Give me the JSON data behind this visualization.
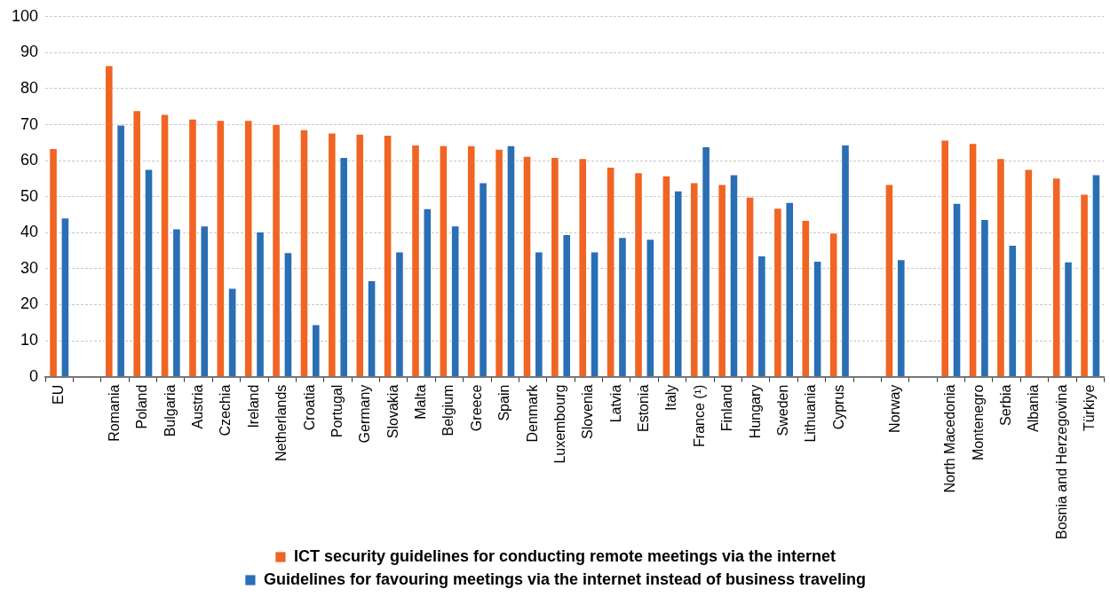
{
  "chart_data": {
    "type": "bar",
    "categories": [
      "EU",
      null,
      "Romania",
      "Poland",
      "Bulgaria",
      "Austria",
      "Czechia",
      "Ireland",
      "Netherlands",
      "Croatia",
      "Portugal",
      "Germany",
      "Slovakia",
      "Malta",
      "Belgium",
      "Greece",
      "Spain",
      "Denmark",
      "Luxembourg",
      "Slovenia",
      "Latvia",
      "Estonia",
      "Italy",
      "France (¹)",
      "Finland",
      "Hungary",
      "Sweden",
      "Lithuania",
      "Cyprus",
      null,
      "Norway",
      null,
      "North Macedonia",
      "Montenegro",
      "Serbia",
      "Albania",
      "Bosnia and Herzegovina",
      "Türkiye"
    ],
    "series": [
      {
        "name": "ICT security guidelines for conducting remote meetings via the internet",
        "color": "#f06424",
        "values": [
          63.5,
          null,
          86.5,
          74,
          73,
          71.7,
          71.3,
          71.3,
          70.2,
          68.7,
          67.8,
          67.5,
          67.2,
          64.5,
          64.3,
          64.3,
          63.3,
          61.3,
          61,
          60.7,
          58.3,
          56.8,
          55.9,
          54,
          53.5,
          50,
          46.9,
          43.5,
          40,
          null,
          53.5,
          null,
          65.8,
          64.9,
          60.7,
          57.7,
          55.3,
          50.8
        ]
      },
      {
        "name": "Guidelines for favouring meetings via the internet instead of business traveling",
        "color": "#2a6eb4",
        "values": [
          44.2,
          null,
          70,
          57.7,
          41.2,
          42,
          24.7,
          40.3,
          34.6,
          14.6,
          61,
          26.8,
          34.8,
          46.8,
          42,
          54,
          64.3,
          34.8,
          39.6,
          34.8,
          38.8,
          38.3,
          51.7,
          64,
          56.2,
          33.7,
          48.5,
          32.2,
          64.5,
          null,
          32.6,
          null,
          48.3,
          43.8,
          36.6,
          null,
          32,
          56.2
        ]
      }
    ],
    "ylim": [
      0,
      100
    ],
    "yticks": [
      0,
      10,
      20,
      30,
      40,
      50,
      60,
      70,
      80,
      90,
      100
    ],
    "grid": "y",
    "legend": "bottom"
  }
}
